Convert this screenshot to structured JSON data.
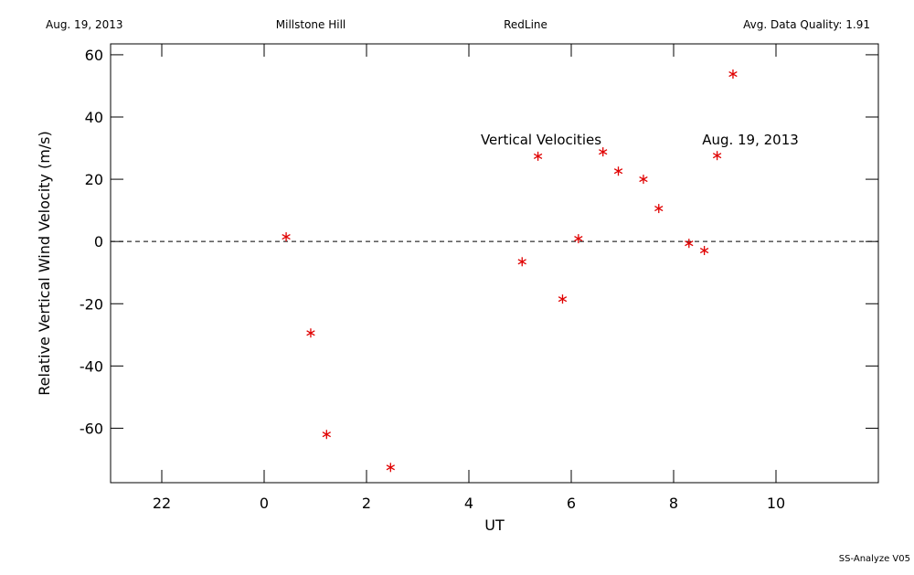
{
  "header": {
    "date": "Aug. 19, 2013",
    "site": "Millstone Hill",
    "instrument": "RedLine",
    "quality": "Avg. Data Quality: 1.91"
  },
  "footer": "SS-Analyze V05",
  "chart_data": {
    "type": "scatter",
    "x_label": "UT",
    "y_label": "Relative Vertical Wind Velocity (m/s)",
    "annotations": [
      "Vertical Velocities",
      "Aug. 19, 2013"
    ],
    "x": [
      0.43,
      0.91,
      1.22,
      2.47,
      5.04,
      5.35,
      5.83,
      6.14,
      6.62,
      6.92,
      7.41,
      7.71,
      8.3,
      8.6,
      8.85,
      9.16
    ],
    "values": [
      1.5,
      -29.4,
      -62,
      -72.6,
      -6.5,
      27.4,
      -18.5,
      0.9,
      28.8,
      22.6,
      20,
      10.6,
      -0.6,
      -2.9,
      27.6,
      53.8
    ],
    "color": "#e00000",
    "xlim": [
      -3,
      12
    ],
    "xticks": [
      {
        "value": -2,
        "label": "22"
      },
      0,
      2,
      4,
      6,
      8,
      10
    ],
    "ylim": [
      -77.5,
      63.5
    ],
    "yticks": [
      -60,
      -40,
      -20,
      0,
      20,
      40,
      60
    ],
    "reference_line": 0
  }
}
